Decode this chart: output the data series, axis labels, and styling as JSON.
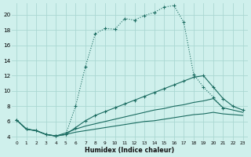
{
  "xlabel": "Humidex (Indice chaleur)",
  "bg_color": "#cff0ec",
  "grid_color": "#aad8d2",
  "line_color": "#1a6b60",
  "xlim": [
    -0.5,
    23.5
  ],
  "ylim": [
    3.5,
    21.5
  ],
  "xticks": [
    0,
    1,
    2,
    3,
    4,
    5,
    6,
    7,
    8,
    9,
    10,
    11,
    12,
    13,
    14,
    15,
    16,
    17,
    18,
    19,
    20,
    21,
    22,
    23
  ],
  "yticks": [
    4,
    6,
    8,
    10,
    12,
    14,
    16,
    18,
    20
  ],
  "line1_x": [
    0,
    1,
    2,
    3,
    4,
    5,
    6,
    7,
    8,
    9,
    10,
    11,
    12,
    13,
    14,
    15,
    16,
    17,
    18,
    19,
    20,
    21
  ],
  "line1_y": [
    6.2,
    5.0,
    4.8,
    4.3,
    4.1,
    4.3,
    8.0,
    13.2,
    17.5,
    18.2,
    18.1,
    19.5,
    19.3,
    19.9,
    20.3,
    21.0,
    21.2,
    19.0,
    12.2,
    10.5,
    9.2,
    7.7
  ],
  "line2_x": [
    0,
    1,
    2,
    3,
    4,
    5,
    6,
    7,
    8,
    9,
    10,
    11,
    12,
    13,
    14,
    15,
    16,
    17,
    18,
    19,
    20,
    21,
    22,
    23
  ],
  "line2_y": [
    6.2,
    5.0,
    4.8,
    4.3,
    4.1,
    4.3,
    5.2,
    6.1,
    6.8,
    7.3,
    7.8,
    8.3,
    8.8,
    9.3,
    9.8,
    10.3,
    10.8,
    11.3,
    11.8,
    12.0,
    10.5,
    9.0,
    8.0,
    7.5
  ],
  "line3_x": [
    0,
    1,
    2,
    3,
    4,
    5,
    6,
    7,
    8,
    9,
    10,
    11,
    12,
    13,
    14,
    15,
    16,
    17,
    18,
    19,
    20,
    21,
    22,
    23
  ],
  "line3_y": [
    6.2,
    5.0,
    4.8,
    4.3,
    4.1,
    4.5,
    5.0,
    5.4,
    5.7,
    6.0,
    6.3,
    6.6,
    6.9,
    7.2,
    7.5,
    7.7,
    8.0,
    8.2,
    8.5,
    8.7,
    9.0,
    7.8,
    7.5,
    7.2
  ],
  "line4_x": [
    0,
    1,
    2,
    3,
    4,
    5,
    6,
    7,
    8,
    9,
    10,
    11,
    12,
    13,
    14,
    15,
    16,
    17,
    18,
    19,
    20,
    21,
    22,
    23
  ],
  "line4_y": [
    6.2,
    5.0,
    4.8,
    4.3,
    4.1,
    4.3,
    4.6,
    4.8,
    5.0,
    5.2,
    5.4,
    5.6,
    5.8,
    6.0,
    6.1,
    6.3,
    6.5,
    6.7,
    6.9,
    7.0,
    7.2,
    7.0,
    6.9,
    6.8
  ]
}
